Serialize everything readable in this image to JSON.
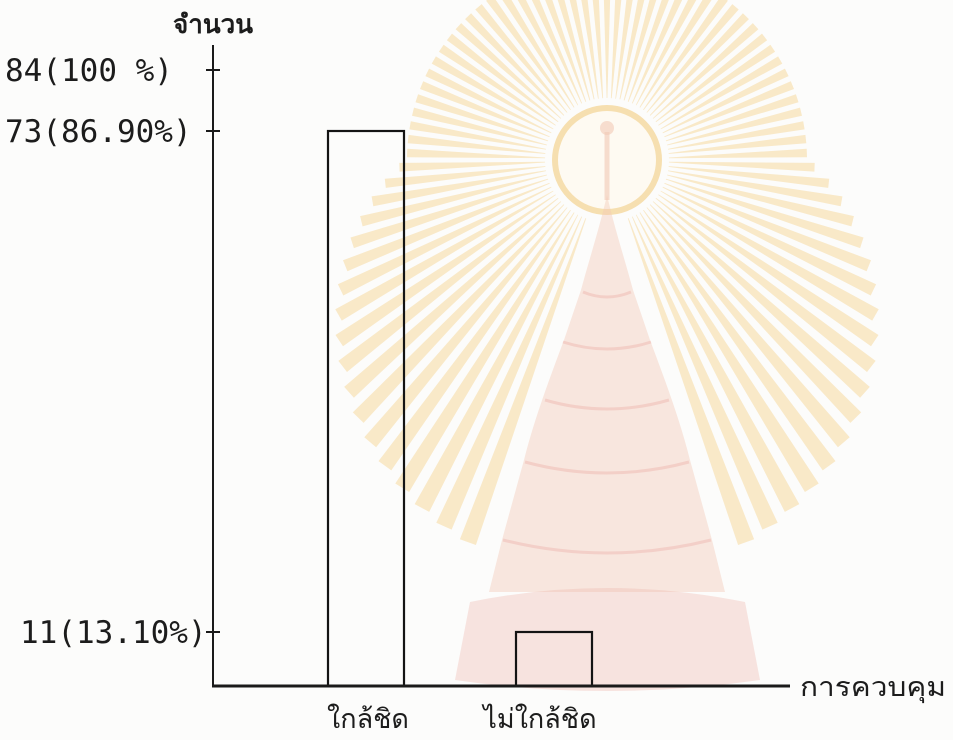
{
  "chart_data": {
    "type": "bar",
    "xlabel": "การควบคุม",
    "ylabel": "จำนวน",
    "categories": [
      "ใกล้ชิด",
      "ไม่ใกล้ชิด"
    ],
    "values": [
      73,
      11
    ],
    "ylim": [
      0,
      84
    ],
    "yticks": [
      84,
      73,
      11
    ],
    "ytick_labels": [
      "84(100 %)",
      "73(86.90%)",
      "11(13.10%)"
    ],
    "grid": false,
    "bar_style": "outline",
    "bar_edge_color": "#141414",
    "axis_color": "#1a1a1a"
  },
  "watermark": {
    "ray_color": "#f5d89e",
    "seal_color": "#f2c9b6",
    "base_color": "#eeb4ad",
    "halo_color": "#fffaf0"
  }
}
